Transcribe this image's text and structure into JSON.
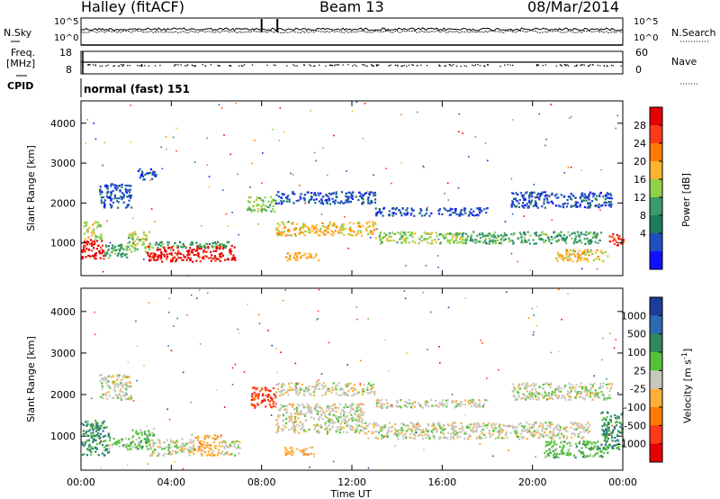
{
  "header": {
    "radar": "Halley (fitACF)",
    "beam": "Beam 13",
    "date": "08/Mar/2014"
  },
  "panels": {
    "nsky": {
      "left_label": "N.Sky",
      "left_ticks": [
        "10^5",
        "10^0"
      ],
      "right_label": "N.Search",
      "right_ticks": [
        "10^5",
        "10^0"
      ]
    },
    "freq": {
      "left_label_1": "Freq.",
      "left_label_2": "[MHz]",
      "left_ticks": [
        "18",
        "8"
      ],
      "right_label": "Nave",
      "right_ticks": [
        "60",
        "0"
      ]
    },
    "cpid": {
      "label": "CPID",
      "value": "normal (fast) 151"
    }
  },
  "colorbars": {
    "power": {
      "title": "Power [dB]",
      "ticks": [
        "28",
        "24",
        "20",
        "16",
        "12",
        "8",
        "4"
      ],
      "colors": [
        "#e60000",
        "#ff3a1a",
        "#ff7c00",
        "#ffb52e",
        "#8fd24a",
        "#3a9a6a",
        "#1d7a5a",
        "#1f4fbf",
        "#1010ff"
      ]
    },
    "velocity": {
      "title": "Velocity [m s",
      "title_sup": "-1",
      "title_end": "]",
      "ticks": [
        "1000",
        "500",
        "100",
        "25",
        "-25",
        "-100",
        "-500",
        "-1000"
      ],
      "colors": [
        "#1e3c9a",
        "#2d6ab0",
        "#2f8a5a",
        "#55c23a",
        "#c8c8c0",
        "#ffb03a",
        "#ff7a00",
        "#ff3a1a",
        "#e60000"
      ]
    }
  },
  "chart_data": [
    {
      "type": "heatmap",
      "title": "Power",
      "ylabel": "Slant Range [km]",
      "xlabel": "Time UT",
      "x_ticks": [
        "00:00",
        "04:00",
        "08:00",
        "12:00",
        "16:00",
        "20:00",
        "00:00"
      ],
      "xlim_hours": [
        0,
        24
      ],
      "y_ticks": [
        1000,
        2000,
        3000,
        4000
      ],
      "ylim": [
        180,
        4560
      ],
      "colorbar": "power",
      "regions": [
        {
          "t0": 0.0,
          "t1": 1.0,
          "r0": 600,
          "r1": 1100,
          "level": 0
        },
        {
          "t0": 0.1,
          "t1": 0.9,
          "r0": 1100,
          "r1": 1550,
          "level": 4
        },
        {
          "t0": 1.0,
          "t1": 2.0,
          "r0": 650,
          "r1": 1000,
          "level": 5
        },
        {
          "t0": 2.0,
          "t1": 3.0,
          "r0": 800,
          "r1": 1300,
          "level": 4
        },
        {
          "t0": 2.9,
          "t1": 6.8,
          "r0": 550,
          "r1": 950,
          "level": 0
        },
        {
          "t0": 3.0,
          "t1": 6.5,
          "r0": 900,
          "r1": 1050,
          "level": 5
        },
        {
          "t0": 7.3,
          "t1": 8.6,
          "r0": 1800,
          "r1": 2200,
          "level": 4
        },
        {
          "t0": 8.6,
          "t1": 13.0,
          "r0": 1200,
          "r1": 1550,
          "level": 3
        },
        {
          "t0": 13.0,
          "t1": 17.0,
          "r0": 1000,
          "r1": 1300,
          "level": 4
        },
        {
          "t0": 17.0,
          "t1": 23.0,
          "r0": 1000,
          "r1": 1300,
          "level": 5
        },
        {
          "t0": 21.0,
          "t1": 23.3,
          "r0": 550,
          "r1": 850,
          "level": 3
        },
        {
          "t0": 23.3,
          "t1": 24.0,
          "r0": 950,
          "r1": 1250,
          "level": 1
        },
        {
          "t0": 8.6,
          "t1": 13.0,
          "r0": 2000,
          "r1": 2300,
          "level": 7
        },
        {
          "t0": 13.0,
          "t1": 18.0,
          "r0": 1700,
          "r1": 1900,
          "level": 7
        },
        {
          "t0": 0.8,
          "t1": 2.2,
          "r0": 1900,
          "r1": 2500,
          "level": 7
        },
        {
          "t0": 2.5,
          "t1": 3.3,
          "r0": 2600,
          "r1": 2900,
          "level": 7
        },
        {
          "t0": 19.0,
          "t1": 23.5,
          "r0": 1900,
          "r1": 2300,
          "level": 7
        },
        {
          "t0": 9.0,
          "t1": 10.5,
          "r0": 580,
          "r1": 780,
          "level": 3
        }
      ]
    },
    {
      "type": "heatmap",
      "title": "Velocity",
      "ylabel": "Slant Range [km]",
      "xlabel": "Time UT",
      "x_ticks": [
        "00:00",
        "04:00",
        "08:00",
        "12:00",
        "16:00",
        "20:00",
        "00:00"
      ],
      "xlim_hours": [
        0,
        24
      ],
      "y_ticks": [
        1000,
        2000,
        3000,
        4000
      ],
      "ylim": [
        180,
        4560
      ],
      "colorbar": "velocity",
      "regions": [
        {
          "t0": 0.0,
          "t1": 1.2,
          "r0": 550,
          "r1": 1400,
          "level": 2
        },
        {
          "t0": 1.2,
          "t1": 2.2,
          "r0": 700,
          "r1": 1000,
          "level": 3
        },
        {
          "t0": 2.2,
          "t1": 3.2,
          "r0": 700,
          "r1": 1200,
          "level": 3
        },
        {
          "t0": 3.0,
          "t1": 5.0,
          "r0": 550,
          "r1": 950,
          "level": 4
        },
        {
          "t0": 5.0,
          "t1": 6.2,
          "r0": 550,
          "r1": 1050,
          "level": 5
        },
        {
          "t0": 6.2,
          "t1": 7.0,
          "r0": 550,
          "r1": 900,
          "level": 4
        },
        {
          "t0": 7.5,
          "t1": 8.6,
          "r0": 1700,
          "r1": 2200,
          "level": 7
        },
        {
          "t0": 8.6,
          "t1": 12.5,
          "r0": 1100,
          "r1": 1800,
          "level": 4
        },
        {
          "t0": 12.5,
          "t1": 22.5,
          "r0": 950,
          "r1": 1350,
          "level": 4
        },
        {
          "t0": 9.0,
          "t1": 10.5,
          "r0": 560,
          "r1": 760,
          "level": 5
        },
        {
          "t0": 20.5,
          "t1": 23.3,
          "r0": 500,
          "r1": 900,
          "level": 3
        },
        {
          "t0": 23.0,
          "t1": 24.0,
          "r0": 700,
          "r1": 1600,
          "level": 2
        },
        {
          "t0": 8.6,
          "t1": 13.0,
          "r0": 2000,
          "r1": 2300,
          "level": 4
        },
        {
          "t0": 13.0,
          "t1": 18.0,
          "r0": 1700,
          "r1": 1900,
          "level": 4
        },
        {
          "t0": 0.8,
          "t1": 2.2,
          "r0": 1900,
          "r1": 2500,
          "level": 4
        },
        {
          "t0": 19.0,
          "t1": 23.5,
          "r0": 1900,
          "r1": 2300,
          "level": 4
        }
      ]
    }
  ]
}
